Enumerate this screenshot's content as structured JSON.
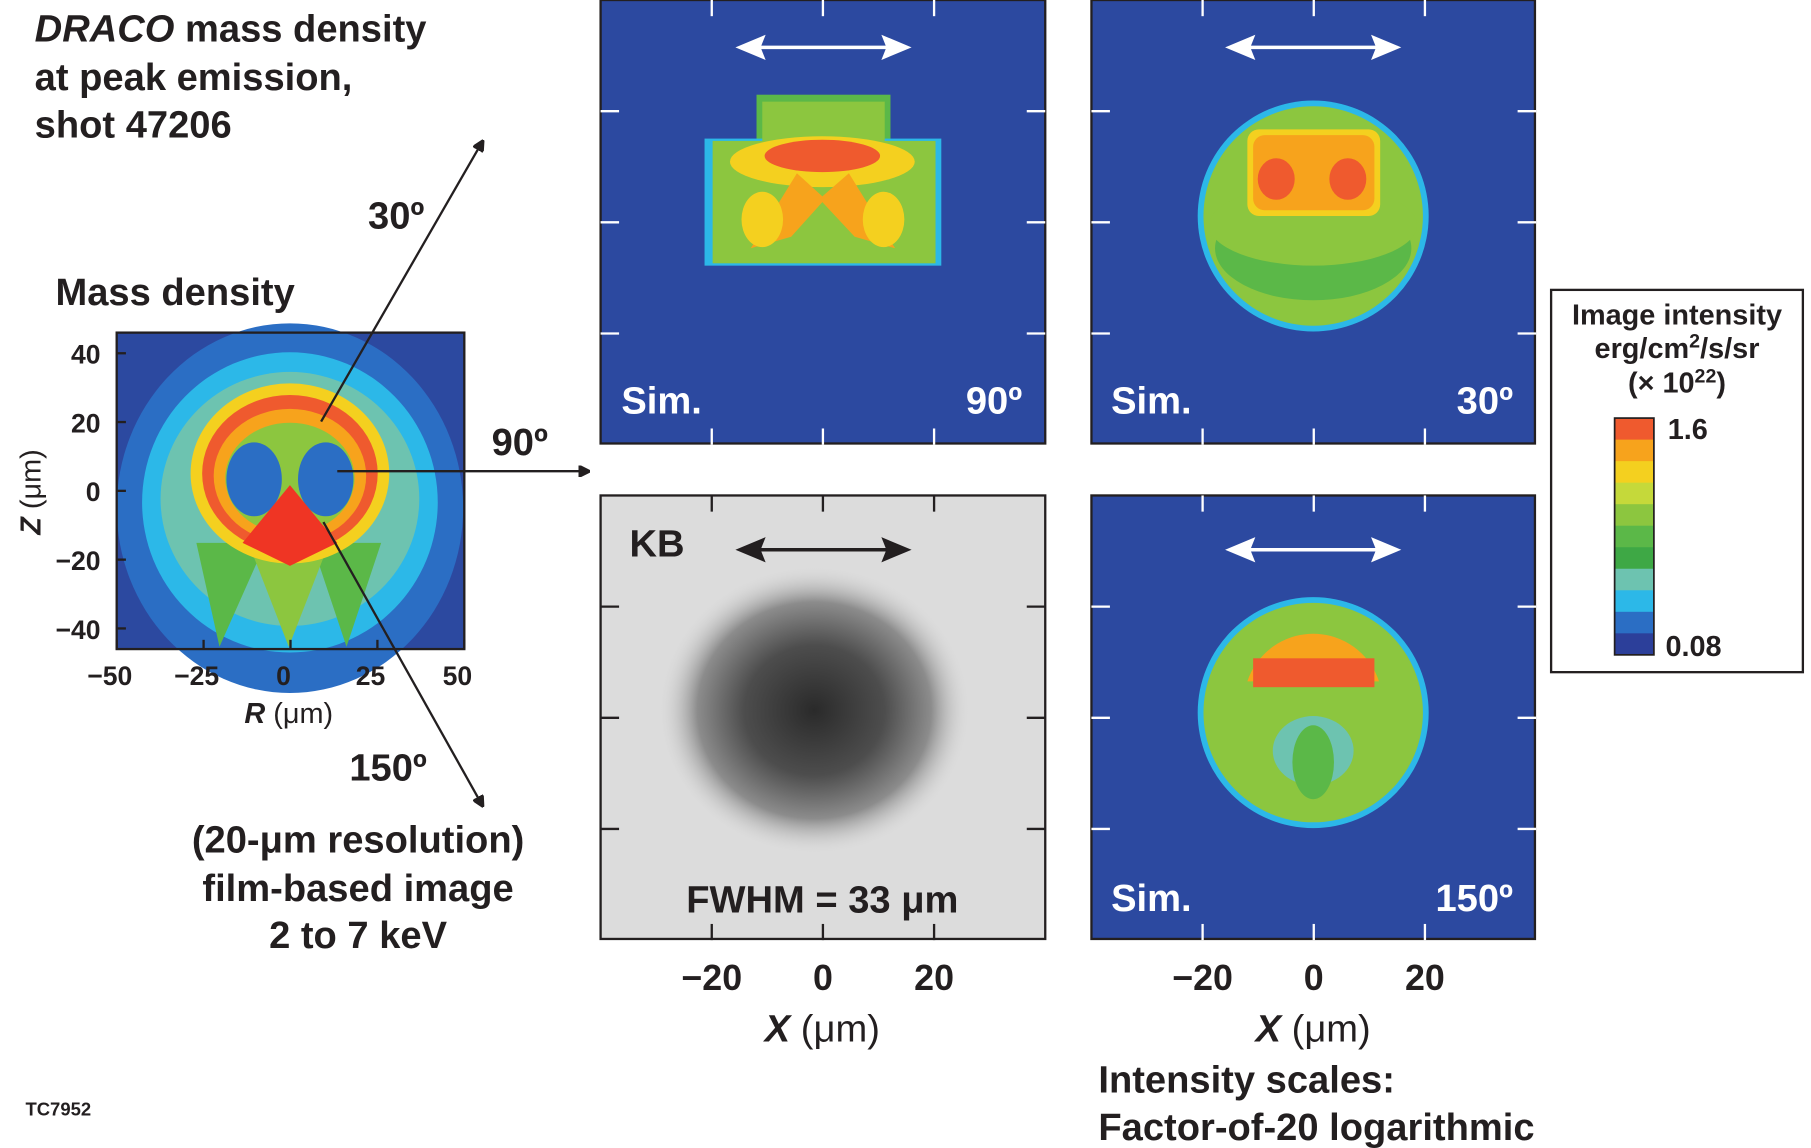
{
  "header": {
    "emphasis": "DRACO",
    "rest": " mass density",
    "line2": "at peak emission,",
    "line3": "shot 47206"
  },
  "density_panel": {
    "title": "Mass density",
    "y_var": "Z",
    "x_var": "R",
    "unit": "(μm)",
    "ylim": [
      -46,
      46
    ],
    "yticks": [
      {
        "value": 40,
        "label": "40"
      },
      {
        "value": 20,
        "label": "20"
      },
      {
        "value": 0,
        "label": "0"
      },
      {
        "value": -20,
        "label": "−20"
      },
      {
        "value": -40,
        "label": "−40"
      }
    ],
    "xlim": [
      -50,
      50
    ],
    "xticks": [
      {
        "value": -50,
        "label": "−50"
      },
      {
        "value": -25,
        "label": "−25"
      },
      {
        "value": 0,
        "label": "0"
      },
      {
        "value": 25,
        "label": "25"
      },
      {
        "value": 50,
        "label": "50"
      }
    ]
  },
  "views": [
    {
      "label": "30º"
    },
    {
      "label": "90º"
    },
    {
      "label": "150º"
    }
  ],
  "note": {
    "line1": "(20-μm resolution)",
    "line2": "film-based image",
    "line3": "2 to 7 keV"
  },
  "image_panels": {
    "x_var": "X",
    "unit": "(μm)",
    "xlim": [
      -40,
      40
    ],
    "xticks": [
      {
        "value": -20,
        "label": "−20"
      },
      {
        "value": 0,
        "label": "0"
      },
      {
        "value": 20,
        "label": "20"
      }
    ],
    "panels": [
      {
        "left": "Sim.",
        "right": "90º"
      },
      {
        "left": "Sim.",
        "right": "30º"
      },
      {
        "left": "KB",
        "right": "FWHM = 33 μm"
      },
      {
        "left": "Sim.",
        "right": "150º"
      }
    ]
  },
  "colorbar": {
    "title1": "Image intensity",
    "title2a": "erg/cm",
    "title2b": "2",
    "title2c": "/s/sr",
    "title3a": "(× 10",
    "title3b": "22",
    "title3c": ")",
    "max": "1.6",
    "min": "0.08",
    "colors": [
      "#ef5a2e",
      "#f7a31c",
      "#f4d01f",
      "#c5d93a",
      "#8cc63f",
      "#5bb848",
      "#3ea845",
      "#6dc3b0",
      "#2cb8e8",
      "#2b6ec4",
      "#2c3f9a"
    ]
  },
  "footer": {
    "line1": "Intensity scales:",
    "line2": "Factor-of-20 logarithmic"
  },
  "code": "TC7952"
}
